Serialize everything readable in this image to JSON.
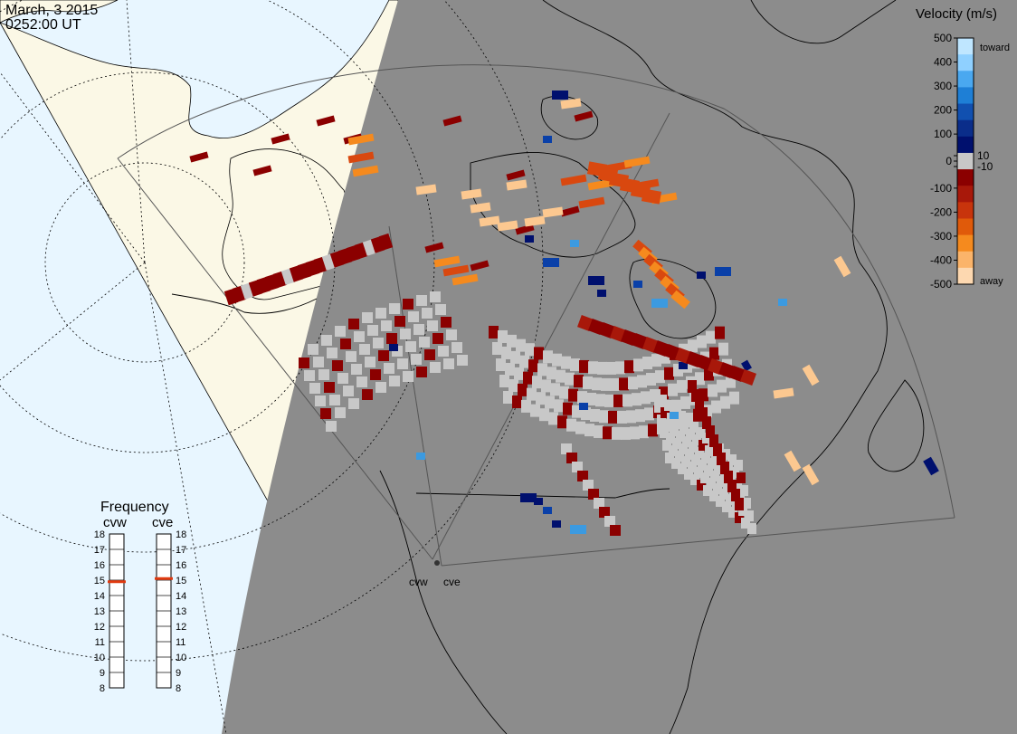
{
  "header": {
    "date": "March, 3 2015",
    "time": "0252:00 UT"
  },
  "velocity_scale": {
    "title": "Velocity (m/s)",
    "ticks": [
      {
        "label": "500",
        "value": 500
      },
      {
        "label": "400",
        "value": 400
      },
      {
        "label": "300",
        "value": 300
      },
      {
        "label": "200",
        "value": 200
      },
      {
        "label": "100",
        "value": 100
      },
      {
        "label": "10",
        "value": 10
      },
      {
        "label": "0",
        "value": 0
      },
      {
        "label": "-10",
        "value": -10
      },
      {
        "label": "-100",
        "value": -100
      },
      {
        "label": "-200",
        "value": -200
      },
      {
        "label": "-300",
        "value": -300
      },
      {
        "label": "-400",
        "value": -400
      },
      {
        "label": "-500",
        "value": -500
      }
    ],
    "toward_label": "toward",
    "away_label": "away",
    "colors": [
      "#bfe6ff",
      "#8fd0ff",
      "#4aa8f0",
      "#1e7fd6",
      "#1150b0",
      "#0a2d8a",
      "#00106e",
      "#c8c8c8",
      "#8b0000",
      "#a8180a",
      "#c8340c",
      "#e05a0a",
      "#f58a1e",
      "#fbb46a",
      "#fdd8b0"
    ]
  },
  "frequency": {
    "title": "Frequency",
    "radars": [
      {
        "name": "cvw",
        "value_mhz": 14.9
      },
      {
        "name": "cve",
        "value_mhz": 15.1
      }
    ],
    "scale": [
      "18",
      "17",
      "16",
      "15",
      "14",
      "13",
      "12",
      "11",
      "10",
      "9",
      "8"
    ]
  },
  "sites": [
    {
      "name": "cvw"
    },
    {
      "name": "cve"
    }
  ],
  "colors": {
    "ocean": "#e8f6ff",
    "land": "#fbf8e6",
    "night": "#8c8c8c",
    "ground_scatter": "#c8c8c8"
  }
}
